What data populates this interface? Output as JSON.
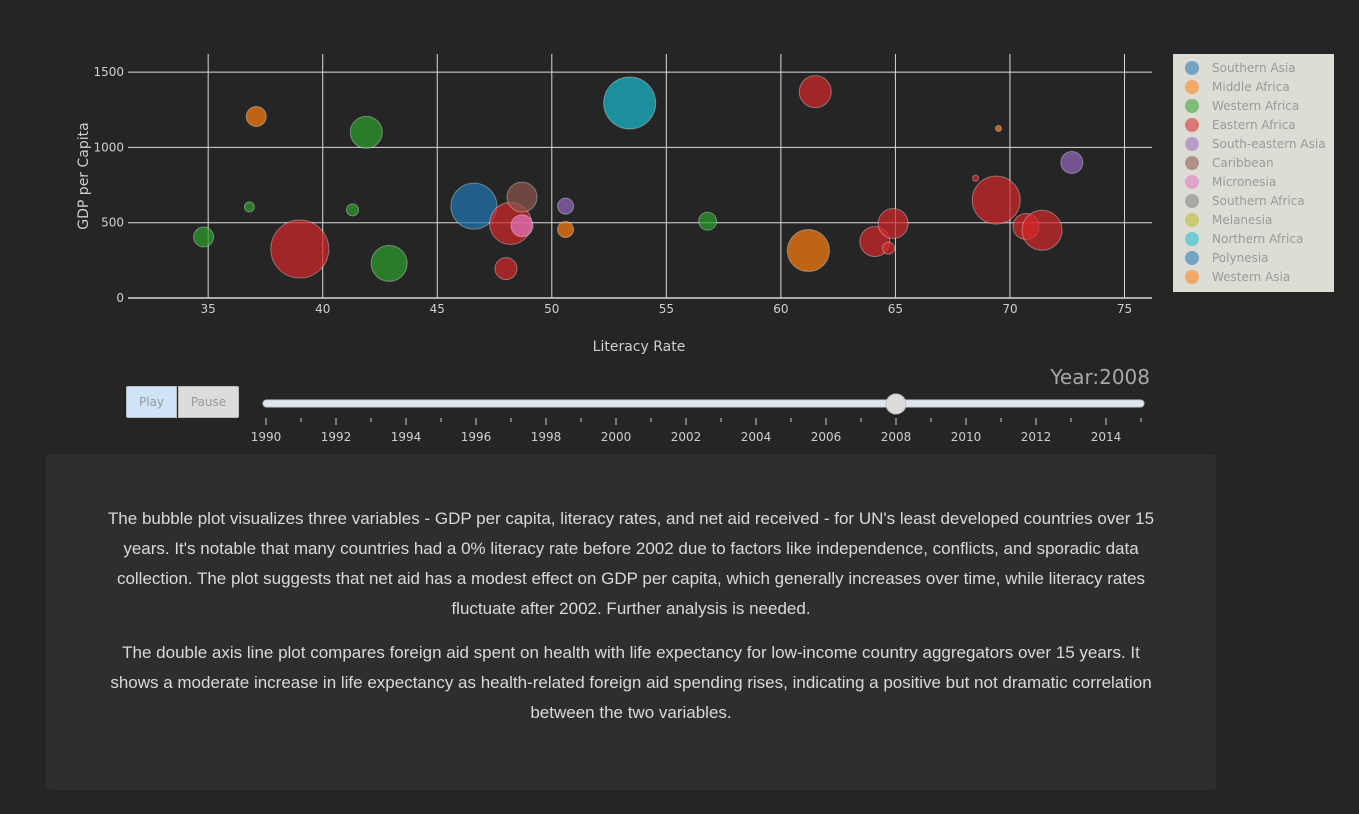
{
  "chart_data": {
    "type": "scatter",
    "subtype": "bubble",
    "title": "",
    "xlabel": "Literacy Rate",
    "ylabel": "GDP per Capita",
    "xlim": [
      31.5,
      76.2
    ],
    "ylim": [
      0,
      1620
    ],
    "xticks": [
      35,
      40,
      45,
      50,
      55,
      60,
      65,
      70,
      75
    ],
    "yticks": [
      0,
      500,
      1000,
      1500
    ],
    "grid": true,
    "legend_position": "right",
    "size_variable": "net aid received",
    "series": [
      {
        "name": "Southern Asia",
        "color": "#1f77b4",
        "points": [
          {
            "x": 46.6,
            "y": 610,
            "size": 23
          }
        ]
      },
      {
        "name": "Middle Africa",
        "color": "#ff7f0e",
        "points": [
          {
            "x": 37.1,
            "y": 1205,
            "size": 10
          },
          {
            "x": 50.6,
            "y": 455,
            "size": 8
          },
          {
            "x": 61.2,
            "y": 315,
            "size": 21
          },
          {
            "x": 69.5,
            "y": 1125,
            "size": 3
          }
        ]
      },
      {
        "name": "Western Africa",
        "color": "#2ca02c",
        "points": [
          {
            "x": 34.8,
            "y": 405,
            "size": 10
          },
          {
            "x": 36.8,
            "y": 605,
            "size": 5
          },
          {
            "x": 41.3,
            "y": 585,
            "size": 6
          },
          {
            "x": 41.9,
            "y": 1100,
            "size": 16
          },
          {
            "x": 42.9,
            "y": 230,
            "size": 18
          },
          {
            "x": 56.8,
            "y": 510,
            "size": 9
          }
        ]
      },
      {
        "name": "Eastern Africa",
        "color": "#d62728",
        "points": [
          {
            "x": 39.0,
            "y": 325,
            "size": 29
          },
          {
            "x": 48.0,
            "y": 195,
            "size": 11
          },
          {
            "x": 48.2,
            "y": 495,
            "size": 21
          },
          {
            "x": 61.5,
            "y": 1370,
            "size": 16
          },
          {
            "x": 64.1,
            "y": 375,
            "size": 15
          },
          {
            "x": 64.7,
            "y": 330,
            "size": 6
          },
          {
            "x": 64.9,
            "y": 495,
            "size": 15
          },
          {
            "x": 68.5,
            "y": 795,
            "size": 3
          },
          {
            "x": 69.4,
            "y": 650,
            "size": 24
          },
          {
            "x": 70.7,
            "y": 475,
            "size": 13
          },
          {
            "x": 71.4,
            "y": 450,
            "size": 20
          }
        ]
      },
      {
        "name": "South-eastern Asia",
        "color": "#9467bd",
        "points": [
          {
            "x": 50.6,
            "y": 610,
            "size": 8
          },
          {
            "x": 72.7,
            "y": 900,
            "size": 11
          }
        ]
      },
      {
        "name": "Caribbean",
        "color": "#8c564b",
        "points": [
          {
            "x": 48.7,
            "y": 670,
            "size": 15
          }
        ]
      },
      {
        "name": "Micronesia",
        "color": "#e377c2",
        "points": [
          {
            "x": 48.7,
            "y": 480,
            "size": 11
          }
        ]
      },
      {
        "name": "Southern Africa",
        "color": "#7f7f7f",
        "points": []
      },
      {
        "name": "Melanesia",
        "color": "#bcbd22",
        "points": []
      },
      {
        "name": "Northern Africa",
        "color": "#17becf",
        "points": [
          {
            "x": 53.4,
            "y": 1295,
            "size": 26
          }
        ]
      },
      {
        "name": "Polynesia",
        "color": "#1f77b4",
        "points": []
      },
      {
        "name": "Western Asia",
        "color": "#ff7f0e",
        "points": []
      }
    ]
  },
  "controls": {
    "play_label": "Play",
    "pause_label": "Pause"
  },
  "slider": {
    "prefix": "Year:",
    "current": "2008",
    "min_year": 1990,
    "max_year": 2015,
    "current_value": 2008,
    "tick_labels": [
      "1990",
      "1992",
      "1994",
      "1996",
      "1998",
      "2000",
      "2002",
      "2004",
      "2006",
      "2008",
      "2010",
      "2012",
      "2014"
    ]
  },
  "description": {
    "paragraph1": "The bubble plot visualizes three variables - GDP per capita, literacy rates, and net aid received - for UN's least developed countries over 15 years. It's notable that many countries had a 0% literacy rate before 2002 due to factors like independence, conflicts, and sporadic data collection. The plot suggests that net aid has a modest effect on GDP per capita, which generally increases over time, while literacy rates fluctuate after 2002. Further analysis is needed.",
    "paragraph2": "The double axis line plot compares foreign aid spent on health with life expectancy for low-income country aggregators over 15 years. It shows a moderate increase in life expectancy as health-related foreign aid spending rises, indicating a positive but not dramatic correlation between the two variables."
  }
}
